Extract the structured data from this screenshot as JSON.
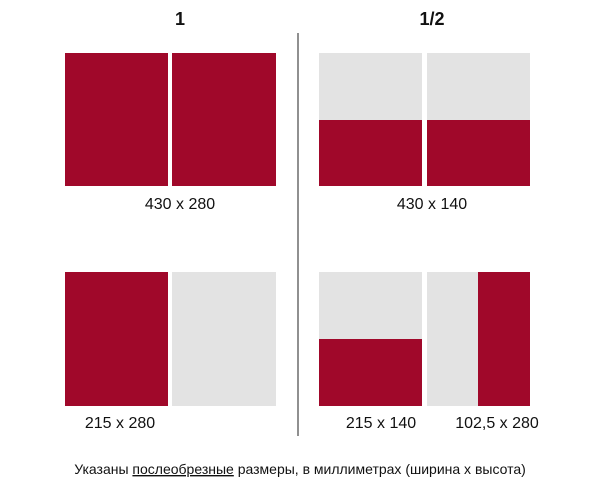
{
  "headings": [
    "1",
    "1/2"
  ],
  "sizes": [
    "430 x 280",
    "430 x 140",
    "215 x 280",
    "215 x 140",
    "102,5 x 280"
  ],
  "caption": {
    "before": "Указаны ",
    "underlined": "послеобрезные",
    "after": " размеры, в миллиметрах (ширина х высота)"
  }
}
